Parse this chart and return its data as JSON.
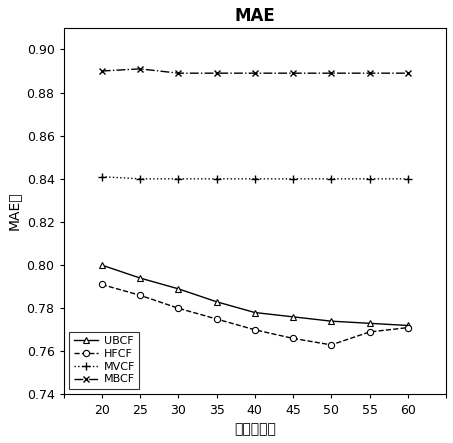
{
  "title": "MAE",
  "xlabel": "邻近用户数",
  "ylabel": "MAE值",
  "x": [
    20,
    25,
    30,
    35,
    40,
    45,
    50,
    55,
    60
  ],
  "UBCF": [
    0.8,
    0.794,
    0.789,
    0.783,
    0.778,
    0.776,
    0.774,
    0.773,
    0.772
  ],
  "HFCF": [
    0.791,
    0.786,
    0.78,
    0.775,
    0.77,
    0.766,
    0.763,
    0.769,
    0.771
  ],
  "MVCF": [
    0.841,
    0.84,
    0.84,
    0.84,
    0.84,
    0.84,
    0.84,
    0.84,
    0.84
  ],
  "MBCF": [
    0.89,
    0.891,
    0.889,
    0.889,
    0.889,
    0.889,
    0.889,
    0.889,
    0.889
  ],
  "xlim": [
    15,
    65
  ],
  "ylim": [
    0.74,
    0.91
  ],
  "yticks": [
    0.74,
    0.76,
    0.78,
    0.8,
    0.82,
    0.84,
    0.86,
    0.88,
    0.9
  ],
  "xticks": [
    15,
    20,
    25,
    30,
    35,
    40,
    45,
    50,
    55,
    60,
    65
  ],
  "figsize": [
    4.53,
    4.43
  ],
  "dpi": 100
}
